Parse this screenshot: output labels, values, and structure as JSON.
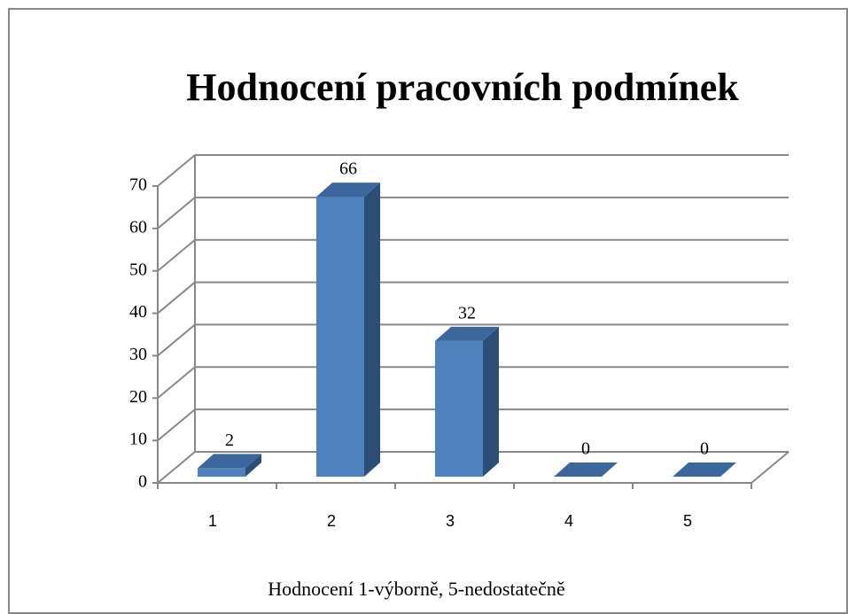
{
  "chart_data": {
    "type": "bar3d",
    "title": "Hodnocení pracovních podmínek",
    "x_label": "Hodnocení 1-výborně, 5-nedostatečně",
    "categories": [
      "1",
      "2",
      "3",
      "4",
      "5"
    ],
    "values": [
      2,
      66,
      32,
      0,
      0
    ],
    "color": "#4f81bd",
    "ylim": [
      0,
      70
    ],
    "yticks": [
      0,
      10,
      20,
      30,
      40,
      50,
      60,
      70
    ],
    "grid": true
  }
}
